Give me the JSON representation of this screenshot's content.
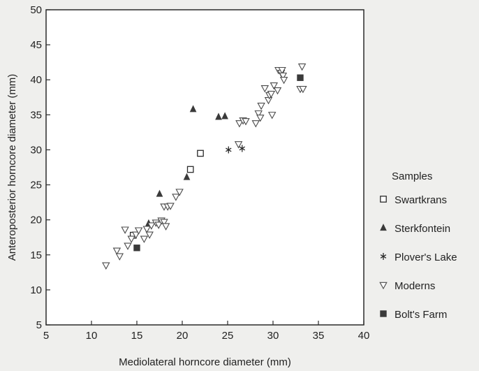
{
  "chart_data": {
    "type": "scatter",
    "xlabel": "Mediolateral horncore diameter (mm)",
    "ylabel": "Anteroposterior horncore diameter (mm)",
    "xlim": [
      5,
      40
    ],
    "ylim": [
      5,
      50
    ],
    "xticks": [
      5,
      10,
      15,
      20,
      25,
      30,
      35,
      40
    ],
    "yticks": [
      5,
      10,
      15,
      20,
      25,
      30,
      35,
      40,
      45,
      50
    ],
    "grid": false,
    "legend": {
      "title": "Samples",
      "placement": "right, outside plot"
    },
    "series": [
      {
        "name": "Swartkrans",
        "marker": "open-square",
        "points": [
          [
            14.6,
            17.8
          ],
          [
            20.9,
            27.2
          ],
          [
            22.0,
            29.5
          ]
        ]
      },
      {
        "name": "Sterkfontein",
        "marker": "filled-triangle-up",
        "points": [
          [
            21.2,
            35.8
          ],
          [
            24.0,
            34.7
          ],
          [
            24.7,
            34.8
          ],
          [
            20.5,
            26.1
          ],
          [
            17.5,
            23.7
          ],
          [
            16.3,
            19.5
          ]
        ]
      },
      {
        "name": "Plover's Lake",
        "marker": "asterisk",
        "points": [
          [
            25.1,
            30.0
          ],
          [
            26.6,
            30.2
          ]
        ]
      },
      {
        "name": "Moderns",
        "marker": "open-triangle-down",
        "points": [
          [
            11.6,
            13.5
          ],
          [
            12.8,
            15.6
          ],
          [
            13.1,
            14.8
          ],
          [
            13.7,
            18.6
          ],
          [
            14.0,
            16.3
          ],
          [
            14.4,
            17.3
          ],
          [
            14.9,
            17.9
          ],
          [
            15.2,
            18.5
          ],
          [
            15.8,
            17.3
          ],
          [
            16.1,
            18.7
          ],
          [
            16.4,
            17.9
          ],
          [
            16.6,
            19.2
          ],
          [
            17.1,
            19.6
          ],
          [
            17.4,
            19.3
          ],
          [
            17.7,
            19.9
          ],
          [
            18.0,
            19.7
          ],
          [
            18.2,
            19.1
          ],
          [
            18.0,
            21.9
          ],
          [
            18.4,
            21.9
          ],
          [
            18.7,
            22.0
          ],
          [
            19.3,
            23.3
          ],
          [
            19.7,
            24.0
          ],
          [
            26.2,
            30.8
          ],
          [
            26.3,
            33.8
          ],
          [
            26.7,
            34.2
          ],
          [
            27.0,
            34.1
          ],
          [
            28.1,
            33.8
          ],
          [
            28.4,
            35.2
          ],
          [
            28.6,
            34.6
          ],
          [
            28.7,
            36.3
          ],
          [
            29.1,
            38.8
          ],
          [
            29.5,
            37.1
          ],
          [
            29.6,
            37.8
          ],
          [
            29.8,
            38.0
          ],
          [
            30.1,
            39.2
          ],
          [
            29.9,
            35.0
          ],
          [
            30.5,
            38.5
          ],
          [
            30.6,
            41.4
          ],
          [
            30.9,
            41.0
          ],
          [
            31.0,
            41.4
          ],
          [
            31.1,
            40.6
          ],
          [
            31.2,
            40.0
          ],
          [
            33.2,
            41.9
          ],
          [
            33.0,
            38.7
          ],
          [
            33.3,
            38.7
          ]
        ]
      },
      {
        "name": "Bolt's Farm",
        "marker": "filled-square",
        "points": [
          [
            15.0,
            16.0
          ],
          [
            33.0,
            40.3
          ]
        ]
      }
    ]
  },
  "colors": {
    "background": "#efefed",
    "plot_background": "#ffffff",
    "ink": "#2a2a2a",
    "marker_fill": "#3a3a3a"
  }
}
